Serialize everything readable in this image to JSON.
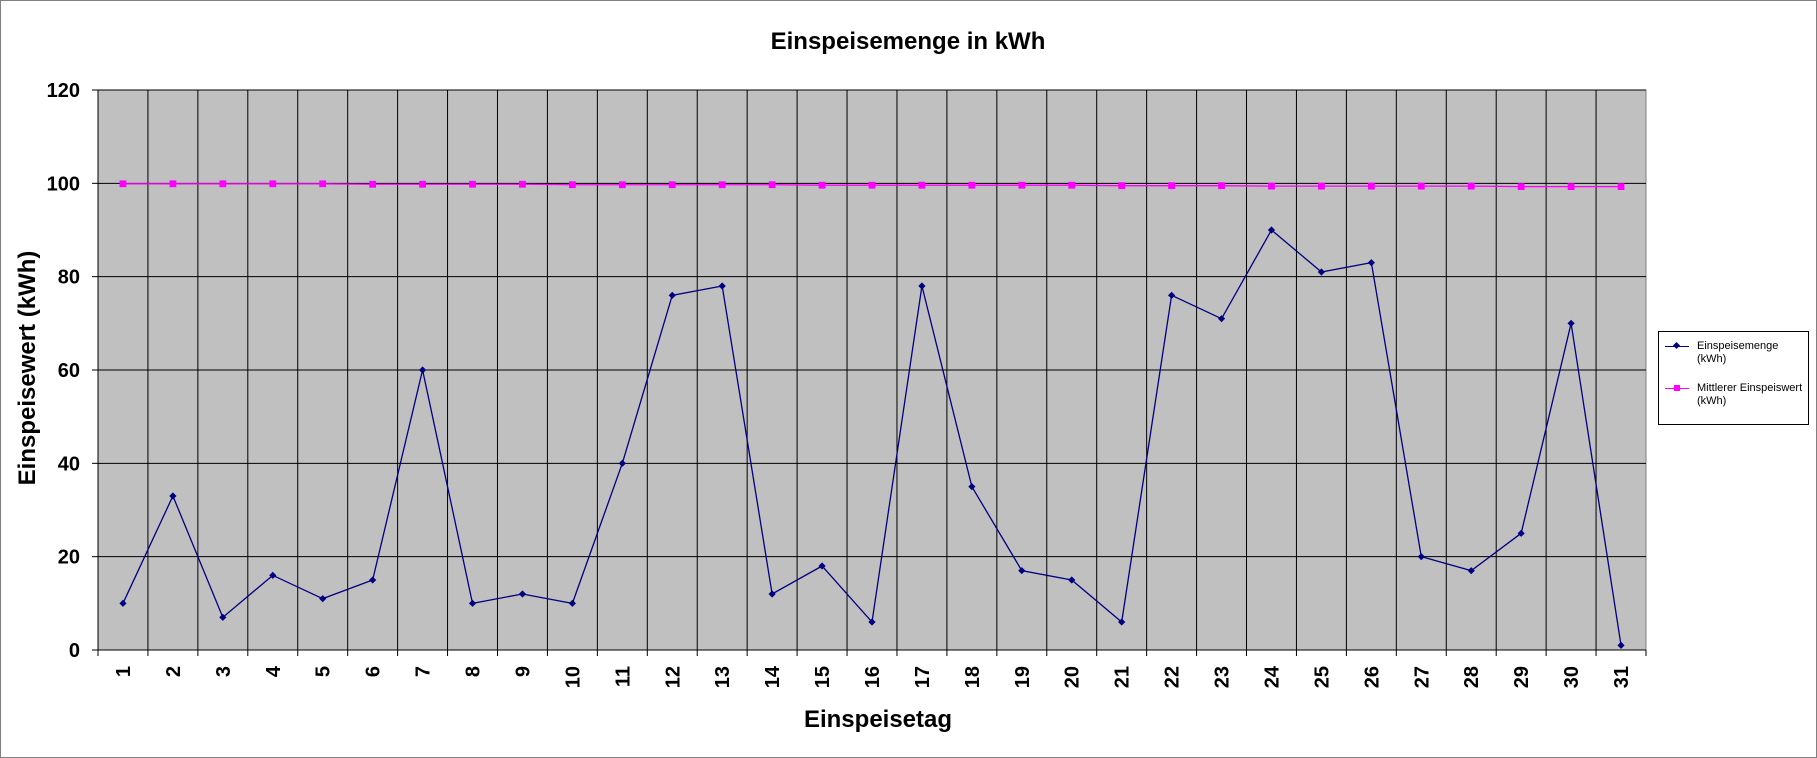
{
  "chart_data": {
    "type": "line",
    "title": "Einspeisemenge in kWh",
    "xlabel": "Einspeisetag",
    "ylabel": "Einspeisewert  (kWh)",
    "categories": [
      "1",
      "2",
      "3",
      "4",
      "5",
      "6",
      "7",
      "8",
      "9",
      "10",
      "11",
      "12",
      "13",
      "14",
      "15",
      "16",
      "17",
      "18",
      "19",
      "20",
      "21",
      "22",
      "23",
      "24",
      "25",
      "26",
      "27",
      "28",
      "29",
      "30",
      "31"
    ],
    "ylim": [
      0,
      120
    ],
    "yticks": [
      0,
      20,
      40,
      60,
      80,
      100,
      120
    ],
    "grid": true,
    "legend_position": "right",
    "plot_background": "#C0C0C0",
    "series": [
      {
        "name": "Einspeisemenge\n(kWh)",
        "color": "#000080",
        "marker": "diamond",
        "values": [
          10,
          33,
          7,
          16,
          11,
          15,
          60,
          10,
          12,
          10,
          40,
          76,
          78,
          12,
          18,
          6,
          78,
          35,
          17,
          15,
          6,
          76,
          71,
          90,
          81,
          83,
          20,
          17,
          25,
          70,
          1
        ]
      },
      {
        "name": "Mittlerer Einspeiswert\n(kWh)",
        "color": "#FF00FF",
        "marker": "square",
        "values": [
          99.9,
          99.9,
          99.9,
          99.9,
          99.9,
          99.8,
          99.8,
          99.8,
          99.8,
          99.7,
          99.7,
          99.7,
          99.7,
          99.7,
          99.6,
          99.6,
          99.6,
          99.6,
          99.6,
          99.6,
          99.5,
          99.5,
          99.5,
          99.4,
          99.4,
          99.4,
          99.4,
          99.4,
          99.3,
          99.3,
          99.3
        ]
      }
    ]
  }
}
